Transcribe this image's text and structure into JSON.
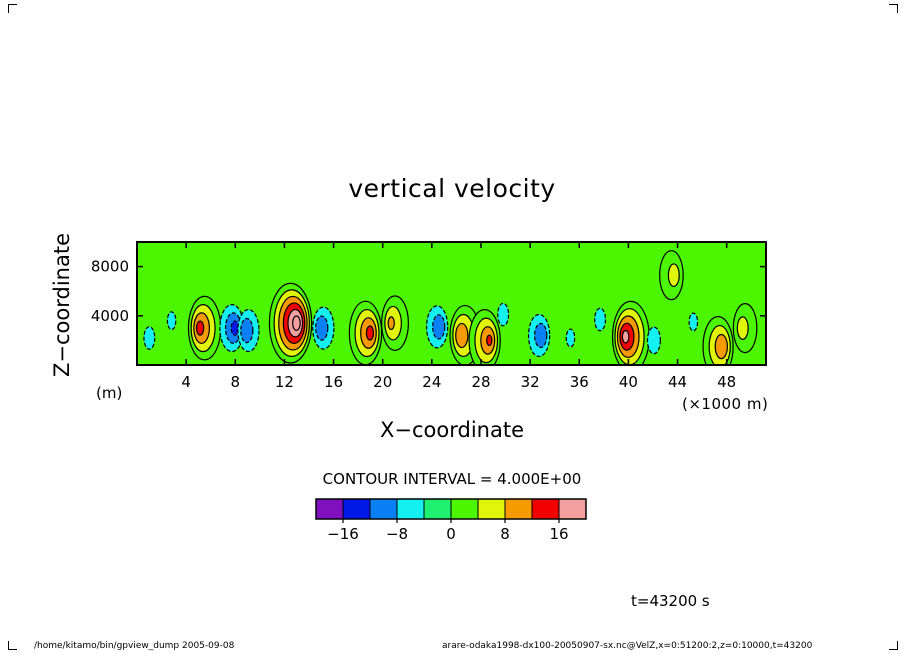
{
  "footer": {
    "left": "/home/kitamo/bin/gpview_dump   2005-09-08",
    "right": "arare-odaka1998-dx100-20050907-sx.nc@VelZ,x=0:51200:2,z=0:10000,t=43200"
  },
  "time_label": "t=43200 s",
  "contour_interval_label": "CONTOUR INTERVAL = 4.000E+00",
  "chart_data": {
    "type": "heatmap",
    "title": "vertical velocity",
    "xlabel": "X−coordinate",
    "ylabel": "Z−coordinate",
    "x_unit": "(×1000 m)",
    "y_unit": "(m)",
    "xlim": [
      0,
      51.2
    ],
    "ylim": [
      0,
      10000
    ],
    "x_ticks": [
      4,
      8,
      12,
      16,
      20,
      24,
      28,
      32,
      36,
      40,
      44,
      48
    ],
    "x_tick_labels": [
      "4",
      "8",
      "12",
      "16",
      "20",
      "24",
      "28",
      "32",
      "36",
      "40",
      "44",
      "48"
    ],
    "y_ticks": [
      4000,
      8000
    ],
    "y_tick_labels": [
      "4000",
      "8000"
    ],
    "contour_interval": 4.0,
    "colorbar": {
      "bounds": [
        -20,
        -16,
        -12,
        -8,
        -4,
        0,
        4,
        8,
        12,
        16,
        20
      ],
      "colors": [
        "#7f0fbf",
        "#0019e6",
        "#0a80f5",
        "#14f0f0",
        "#20f070",
        "#4cf500",
        "#e0f50a",
        "#f59a00",
        "#f00000",
        "#f5a0a0"
      ],
      "tick_values": [
        -16,
        -8,
        0,
        8,
        16
      ],
      "tick_labels": [
        "−16",
        "−8",
        "0",
        "8",
        "16"
      ]
    },
    "features": [
      {
        "x": 1.2,
        "z": 2200,
        "w": -5
      },
      {
        "x": 2.6,
        "z": 3600,
        "w": -4
      },
      {
        "x": 5.5,
        "z": 3000,
        "w": 13
      },
      {
        "x": 7.6,
        "z": 3000,
        "w": -13
      },
      {
        "x": 9.2,
        "z": 2800,
        "w": -11
      },
      {
        "x": 12.5,
        "z": 3400,
        "w": 22
      },
      {
        "x": 15.3,
        "z": 3000,
        "w": -11
      },
      {
        "x": 18.6,
        "z": 2600,
        "w": 13
      },
      {
        "x": 21.0,
        "z": 3400,
        "w": 8
      },
      {
        "x": 24.3,
        "z": 3100,
        "w": -11
      },
      {
        "x": 26.7,
        "z": 2400,
        "w": 11
      },
      {
        "x": 28.3,
        "z": 2000,
        "w": 12
      },
      {
        "x": 30.0,
        "z": 4100,
        "w": -5
      },
      {
        "x": 32.6,
        "z": 2400,
        "w": -11
      },
      {
        "x": 35.5,
        "z": 2200,
        "w": -4
      },
      {
        "x": 37.5,
        "z": 3700,
        "w": -5
      },
      {
        "x": 40.2,
        "z": 2300,
        "w": 17
      },
      {
        "x": 41.9,
        "z": 2000,
        "w": -6
      },
      {
        "x": 45.5,
        "z": 3500,
        "w": -4
      },
      {
        "x": 47.3,
        "z": 1500,
        "w": 11
      },
      {
        "x": 49.5,
        "z": 3000,
        "w": 5
      },
      {
        "x": 43.5,
        "z": 7300,
        "w": 5
      }
    ]
  }
}
